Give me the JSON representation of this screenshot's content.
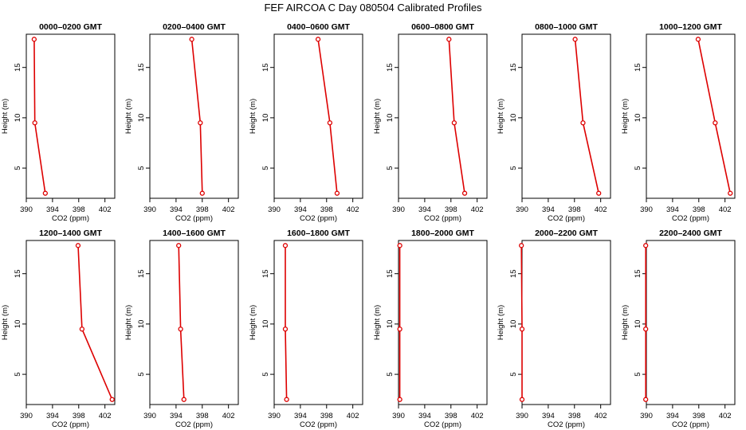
{
  "title": "FEF  AIRCOA C  Day 080504  Calibrated Profiles",
  "style": {
    "line_color": "#dd0000",
    "axis_color": "#000000"
  },
  "chart_data": [
    {
      "type": "line",
      "title": "0000–0200 GMT",
      "xlabel": "CO2 (ppm)",
      "ylabel": "Height (m)",
      "xlim": [
        390,
        403.5
      ],
      "ylim": [
        2,
        18.3
      ],
      "xticks": [
        "390",
        "394",
        "398",
        "402"
      ],
      "yticks": [
        "5",
        "10",
        "15"
      ],
      "x": [
        392.9,
        391.3,
        391.2
      ],
      "y": [
        2.5,
        9.5,
        17.8
      ]
    },
    {
      "type": "line",
      "title": "0200–0400 GMT",
      "xlabel": "CO2 (ppm)",
      "ylabel": "Height (m)",
      "xlim": [
        390,
        403.5
      ],
      "ylim": [
        2,
        18.3
      ],
      "xticks": [
        "390",
        "394",
        "398",
        "402"
      ],
      "yticks": [
        "5",
        "10",
        "15"
      ],
      "x": [
        398.0,
        397.7,
        396.4
      ],
      "y": [
        2.5,
        9.5,
        17.8
      ]
    },
    {
      "type": "line",
      "title": "0400–0600 GMT",
      "xlabel": "CO2 (ppm)",
      "ylabel": "Height (m)",
      "xlim": [
        390,
        403.5
      ],
      "ylim": [
        2,
        18.3
      ],
      "xticks": [
        "390",
        "394",
        "398",
        "402"
      ],
      "yticks": [
        "5",
        "10",
        "15"
      ],
      "x": [
        399.6,
        398.5,
        396.7
      ],
      "y": [
        2.5,
        9.5,
        17.8
      ]
    },
    {
      "type": "line",
      "title": "0600–0800 GMT",
      "xlabel": "CO2 (ppm)",
      "ylabel": "Height (m)",
      "xlim": [
        390,
        403.5
      ],
      "ylim": [
        2,
        18.3
      ],
      "xticks": [
        "390",
        "394",
        "398",
        "402"
      ],
      "yticks": [
        "5",
        "10",
        "15"
      ],
      "x": [
        400.1,
        398.5,
        397.7
      ],
      "y": [
        2.5,
        9.5,
        17.8
      ]
    },
    {
      "type": "line",
      "title": "0800–1000 GMT",
      "xlabel": "CO2 (ppm)",
      "ylabel": "Height (m)",
      "xlim": [
        390,
        403.5
      ],
      "ylim": [
        2,
        18.3
      ],
      "xticks": [
        "390",
        "394",
        "398",
        "402"
      ],
      "yticks": [
        "5",
        "10",
        "15"
      ],
      "x": [
        401.7,
        399.3,
        398.1
      ],
      "y": [
        2.5,
        9.5,
        17.8
      ]
    },
    {
      "type": "line",
      "title": "1000–1200 GMT",
      "xlabel": "CO2 (ppm)",
      "ylabel": "Height (m)",
      "xlim": [
        390,
        403.5
      ],
      "ylim": [
        2,
        18.3
      ],
      "xticks": [
        "390",
        "394",
        "398",
        "402"
      ],
      "yticks": [
        "5",
        "10",
        "15"
      ],
      "x": [
        402.8,
        400.5,
        397.9
      ],
      "y": [
        2.5,
        9.5,
        17.8
      ]
    },
    {
      "type": "line",
      "title": "1200–1400 GMT",
      "xlabel": "CO2 (ppm)",
      "ylabel": "Height (m)",
      "xlim": [
        390,
        403.5
      ],
      "ylim": [
        2,
        18.3
      ],
      "xticks": [
        "390",
        "394",
        "398",
        "402"
      ],
      "yticks": [
        "5",
        "10",
        "15"
      ],
      "x": [
        403.1,
        398.5,
        397.9
      ],
      "y": [
        2.5,
        9.5,
        17.8
      ]
    },
    {
      "type": "line",
      "title": "1400–1600 GMT",
      "xlabel": "CO2 (ppm)",
      "ylabel": "Height (m)",
      "xlim": [
        390,
        403.5
      ],
      "ylim": [
        2,
        18.3
      ],
      "xticks": [
        "390",
        "394",
        "398",
        "402"
      ],
      "yticks": [
        "5",
        "10",
        "15"
      ],
      "x": [
        395.2,
        394.7,
        394.4
      ],
      "y": [
        2.5,
        9.5,
        17.8
      ]
    },
    {
      "type": "line",
      "title": "1600–1800 GMT",
      "xlabel": "CO2 (ppm)",
      "ylabel": "Height (m)",
      "xlim": [
        390,
        403.5
      ],
      "ylim": [
        2,
        18.3
      ],
      "xticks": [
        "390",
        "394",
        "398",
        "402"
      ],
      "yticks": [
        "5",
        "10",
        "15"
      ],
      "x": [
        391.9,
        391.7,
        391.7
      ],
      "y": [
        2.5,
        9.5,
        17.8
      ]
    },
    {
      "type": "line",
      "title": "1800–2000 GMT",
      "xlabel": "CO2 (ppm)",
      "ylabel": "Height (m)",
      "xlim": [
        390,
        403.5
      ],
      "ylim": [
        2,
        18.3
      ],
      "xticks": [
        "390",
        "394",
        "398",
        "402"
      ],
      "yticks": [
        "5",
        "10",
        "15"
      ],
      "x": [
        390.2,
        390.2,
        390.2
      ],
      "y": [
        2.5,
        9.5,
        17.8
      ]
    },
    {
      "type": "line",
      "title": "2000–2200 GMT",
      "xlabel": "CO2 (ppm)",
      "ylabel": "Height (m)",
      "xlim": [
        390,
        403.5
      ],
      "ylim": [
        2,
        18.3
      ],
      "xticks": [
        "390",
        "394",
        "398",
        "402"
      ],
      "yticks": [
        "5",
        "10",
        "15"
      ],
      "x": [
        390.0,
        390.0,
        389.9
      ],
      "y": [
        2.5,
        9.5,
        17.8
      ]
    },
    {
      "type": "line",
      "title": "2200–2400 GMT",
      "xlabel": "CO2 (ppm)",
      "ylabel": "Height (m)",
      "xlim": [
        390,
        403.5
      ],
      "ylim": [
        2,
        18.3
      ],
      "xticks": [
        "390",
        "394",
        "398",
        "402"
      ],
      "yticks": [
        "5",
        "10",
        "15"
      ],
      "x": [
        389.9,
        389.9,
        389.9
      ],
      "y": [
        2.5,
        9.5,
        17.8
      ]
    }
  ]
}
